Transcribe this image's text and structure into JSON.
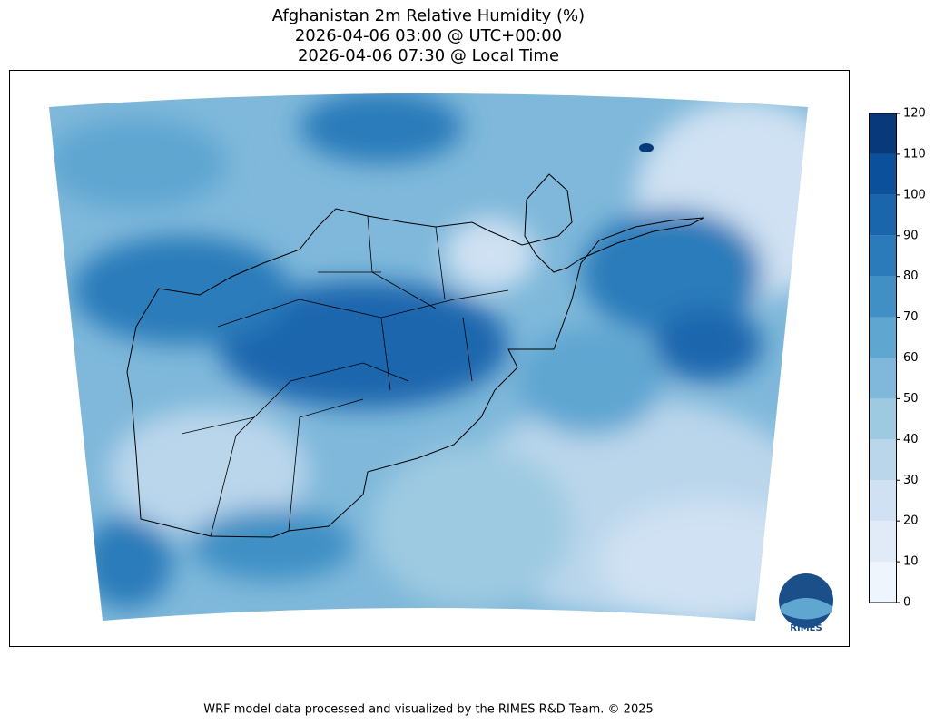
{
  "header": {
    "title_lines": [
      "Afghanistan 2m Relative Humidity (%)",
      "2026-04-06 03:00 @ UTC+00:00",
      "2026-04-06 07:30 @ Local Time"
    ]
  },
  "colorbar": {
    "range": [
      0,
      120
    ],
    "ticks": [
      0,
      10,
      20,
      30,
      40,
      50,
      60,
      70,
      80,
      90,
      100,
      110,
      120
    ],
    "colors": [
      "#eff5fc",
      "#e0ebf7",
      "#cfe1f2",
      "#bad6eb",
      "#9ecae1",
      "#7fb8da",
      "#5fa6d1",
      "#4090c5",
      "#2b7bba",
      "#1a66ad",
      "#0b509a",
      "#08397a"
    ]
  },
  "logo": {
    "label": "RIMES"
  },
  "footer": "WRF model data processed and visualized by the RIMES R&D Team. © 2025"
}
